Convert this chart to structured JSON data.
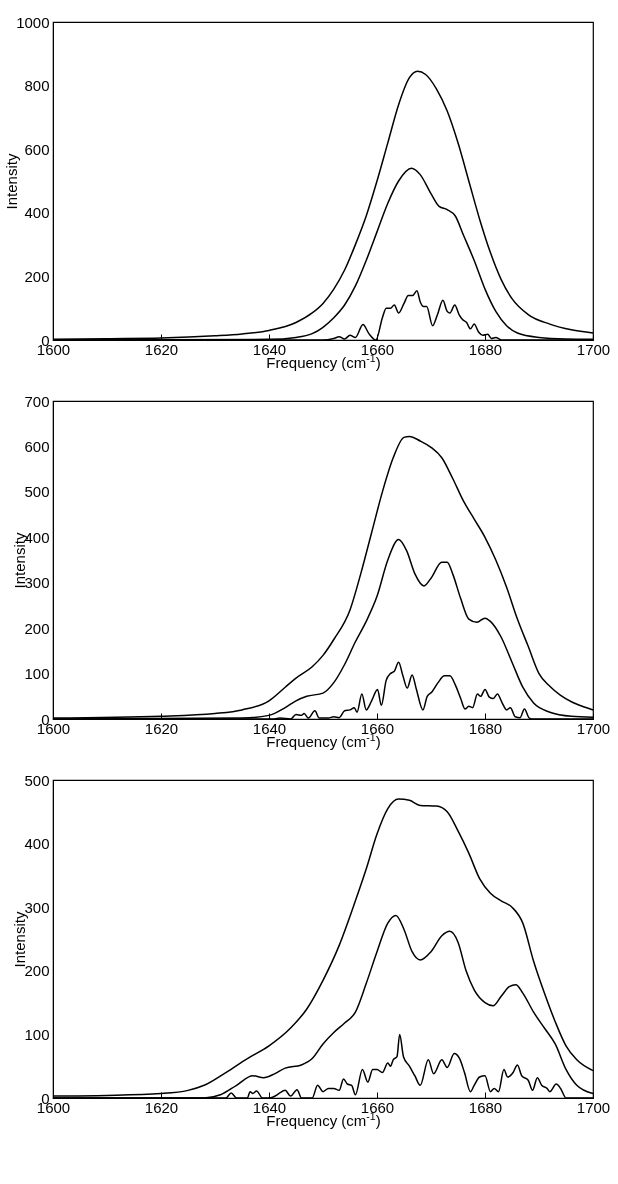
{
  "chart_data": [
    {
      "type": "line",
      "xlabel": "Frequency (cm$^{-1}$)",
      "ylabel": "Intensity",
      "xlim": [
        1600,
        1700
      ],
      "xticks": [
        1600,
        1620,
        1640,
        1660,
        1680,
        1700
      ],
      "ylim": [
        0,
        1000
      ],
      "yticks": [
        0,
        200,
        400,
        600,
        800,
        1000
      ],
      "series": [
        {
          "color": "#000000",
          "x": [
            1600,
            1610,
            1620,
            1630,
            1635,
            1640,
            1645,
            1648,
            1650,
            1652,
            1654,
            1656,
            1658,
            1660,
            1662,
            1664,
            1666,
            1667.5,
            1669,
            1671,
            1673,
            1675,
            1677,
            1679,
            1681,
            1683,
            1685,
            1688,
            1692,
            1696,
            1700
          ],
          "values": [
            2,
            4,
            6,
            13,
            19,
            30,
            55,
            85,
            115,
            160,
            220,
            300,
            390,
            500,
            620,
            740,
            825,
            845,
            835,
            790,
            720,
            620,
            500,
            380,
            275,
            190,
            130,
            80,
            50,
            32,
            22
          ]
        },
        {
          "color": "#000000",
          "x": [
            1600,
            1640,
            1645,
            1648,
            1650,
            1652,
            1654,
            1656,
            1658,
            1660,
            1662,
            1664,
            1666.4,
            1668,
            1670,
            1671.5,
            1673,
            1674.5,
            1676,
            1678,
            1680,
            1682,
            1684,
            1686,
            1690,
            1695,
            1700
          ],
          "values": [
            0,
            2,
            8,
            20,
            40,
            70,
            110,
            170,
            250,
            340,
            430,
            500,
            540,
            520,
            460,
            420,
            410,
            390,
            330,
            250,
            160,
            90,
            45,
            22,
            8,
            3,
            2
          ]
        },
        {
          "color": "#000000",
          "x": [
            1600,
            1650,
            1652,
            1653,
            1654,
            1655,
            1656,
            1657.4,
            1658.5,
            1659.8,
            1661,
            1661.7,
            1662.5,
            1663.2,
            1664,
            1665,
            1665.8,
            1666.6,
            1667.4,
            1668,
            1668.6,
            1669.2,
            1670.3,
            1671.2,
            1672.2,
            1673,
            1673.5,
            1674.4,
            1675.2,
            1675.8,
            1676.6,
            1677.3,
            1678,
            1678.8,
            1679.6,
            1680.5,
            1681.2,
            1682,
            1683,
            1700
          ],
          "values": [
            0,
            0,
            5,
            10,
            3,
            15,
            8,
            49,
            20,
            0,
            70,
            100,
            100,
            110,
            85,
            115,
            140,
            140,
            155,
            120,
            105,
            105,
            45,
            80,
            125,
            90,
            85,
            110,
            80,
            65,
            55,
            35,
            50,
            25,
            15,
            18,
            5,
            8,
            0,
            0
          ]
        }
      ]
    },
    {
      "type": "line",
      "xlabel": "Frequency (cm$^{-1}$)",
      "ylabel": "Intensity",
      "xlim": [
        1600,
        1700
      ],
      "xticks": [
        1600,
        1620,
        1640,
        1660,
        1680,
        1700
      ],
      "ylim": [
        0,
        700
      ],
      "yticks": [
        0,
        100,
        200,
        300,
        400,
        500,
        600,
        700
      ],
      "series": [
        {
          "color": "#000000",
          "x": [
            1600,
            1620,
            1630,
            1635,
            1640,
            1643,
            1645,
            1648,
            1650,
            1652,
            1655,
            1657,
            1659,
            1661,
            1663,
            1665,
            1666,
            1668,
            1670,
            1672,
            1674,
            1676,
            1678,
            1680,
            1682,
            1684,
            1686,
            1688,
            1690,
            1692,
            1694,
            1696,
            1698,
            1700
          ],
          "values": [
            2,
            6,
            12,
            20,
            40,
            70,
            90,
            115,
            140,
            175,
            240,
            320,
            410,
            500,
            575,
            620,
            622,
            612,
            598,
            575,
            530,
            480,
            440,
            400,
            350,
            290,
            220,
            160,
            100,
            72,
            52,
            38,
            28,
            20
          ]
        },
        {
          "color": "#000000",
          "x": [
            1600,
            1635,
            1640,
            1643,
            1645,
            1647,
            1650,
            1652,
            1654,
            1656,
            1658,
            1660,
            1662,
            1664,
            1665.5,
            1667,
            1668.7,
            1670,
            1672,
            1673,
            1674,
            1675.5,
            1677,
            1678.5,
            1680,
            1681,
            1683,
            1685,
            1687,
            1689,
            1692,
            1696,
            1700
          ],
          "values": [
            0,
            2,
            8,
            25,
            40,
            50,
            57,
            80,
            120,
            170,
            215,
            270,
            350,
            395,
            370,
            320,
            293,
            310,
            345,
            345,
            320,
            265,
            220,
            213,
            222,
            215,
            180,
            125,
            70,
            35,
            15,
            6,
            4
          ]
        },
        {
          "color": "#000000",
          "x": [
            1600,
            1641,
            1642,
            1644,
            1645,
            1646,
            1646.5,
            1647.3,
            1648.5,
            1649.3,
            1651,
            1652,
            1653,
            1654,
            1655,
            1655.8,
            1656.3,
            1657.2,
            1658,
            1659,
            1660.1,
            1660.8,
            1661.7,
            1662.5,
            1663.2,
            1664,
            1664.8,
            1665.6,
            1666.5,
            1667.3,
            1668.5,
            1669.3,
            1670.2,
            1671.3,
            1672.5,
            1673.5,
            1674.5,
            1675.5,
            1676.3,
            1677,
            1677.7,
            1678.6,
            1679.2,
            1680,
            1680.8,
            1681.5,
            1682.3,
            1683.2,
            1684,
            1684.7,
            1685.6,
            1686.5,
            1687.3,
            1688.2,
            1689,
            1700
          ],
          "values": [
            0,
            0,
            2,
            0,
            10,
            8,
            12,
            2,
            18,
            2,
            2,
            5,
            3,
            18,
            20,
            25,
            15,
            55,
            20,
            40,
            65,
            30,
            85,
            100,
            105,
            125,
            95,
            68,
            97,
            65,
            20,
            50,
            60,
            80,
            95,
            95,
            75,
            45,
            22,
            28,
            25,
            55,
            50,
            65,
            48,
            45,
            55,
            35,
            20,
            25,
            5,
            3,
            22,
            2,
            0,
            0
          ]
        }
      ]
    },
    {
      "type": "line",
      "xlabel": "Frequency (cm$^{-1}$)",
      "ylabel": "Intensity",
      "xlim": [
        1600,
        1700
      ],
      "xticks": [
        1600,
        1620,
        1640,
        1660,
        1680,
        1700
      ],
      "ylim": [
        0,
        500
      ],
      "yticks": [
        0,
        100,
        200,
        300,
        400,
        500
      ],
      "series": [
        {
          "color": "#000000",
          "x": [
            1600,
            1610,
            1620,
            1625,
            1628,
            1632,
            1636,
            1640,
            1644,
            1647,
            1650,
            1653,
            1656,
            1658,
            1660,
            1662,
            1664,
            1666,
            1668,
            1671,
            1673,
            1675,
            1677,
            1679,
            1681,
            1683,
            1685,
            1687,
            1689,
            1691,
            1693,
            1695,
            1697,
            1700
          ],
          "values": [
            3,
            4,
            7,
            12,
            20,
            40,
            62,
            82,
            110,
            140,
            185,
            240,
            310,
            360,
            415,
            455,
            470,
            468,
            460,
            459,
            450,
            420,
            385,
            345,
            322,
            310,
            300,
            275,
            215,
            165,
            120,
            82,
            60,
            43
          ]
        },
        {
          "color": "#000000",
          "x": [
            1600,
            1628,
            1631,
            1634,
            1637,
            1639,
            1641,
            1643,
            1646,
            1648,
            1650,
            1652,
            1654,
            1656,
            1658,
            1660,
            1662,
            1663.5,
            1665,
            1666.5,
            1668,
            1670,
            1672,
            1673.5,
            1675,
            1676.5,
            1678,
            1680,
            1681.5,
            1683,
            1684.5,
            1685.7,
            1687,
            1689,
            1691,
            1693,
            1695,
            1697,
            1700
          ],
          "values": [
            0,
            0,
            5,
            20,
            35,
            32,
            38,
            47,
            52,
            62,
            85,
            103,
            118,
            135,
            180,
            230,
            275,
            287,
            265,
            230,
            217,
            230,
            255,
            262,
            245,
            200,
            170,
            150,
            145,
            160,
            175,
            178,
            165,
            135,
            110,
            85,
            45,
            20,
            7
          ]
        },
        {
          "color": "#000000",
          "x": [
            1600,
            1632,
            1633,
            1634,
            1636,
            1636.5,
            1637,
            1637.7,
            1638.8,
            1640,
            1641.5,
            1642,
            1643,
            1644,
            1645.2,
            1646,
            1648,
            1649,
            1650,
            1651,
            1652,
            1653,
            1653.8,
            1654.5,
            1655.3,
            1656,
            1657.3,
            1658.3,
            1659.2,
            1660,
            1661,
            1662,
            1662.5,
            1663,
            1663.7,
            1664.2,
            1664.9,
            1666,
            1667,
            1668,
            1669.5,
            1670.5,
            1672,
            1673,
            1674.3,
            1675.3,
            1676.2,
            1677.3,
            1678,
            1679,
            1680,
            1681,
            1681.7,
            1682.5,
            1683.5,
            1684.2,
            1685.2,
            1686,
            1686.8,
            1688,
            1688.8,
            1689.7,
            1690.5,
            1691.5,
            1692,
            1693.2,
            1694,
            1695,
            1700
          ],
          "values": [
            0,
            0,
            8,
            0,
            0,
            10,
            7,
            11,
            0,
            0,
            5,
            8,
            12,
            3,
            13,
            0,
            0,
            20,
            10,
            15,
            15,
            12,
            30,
            22,
            20,
            5,
            45,
            25,
            45,
            45,
            40,
            55,
            50,
            60,
            65,
            100,
            65,
            50,
            35,
            20,
            60,
            38,
            60,
            48,
            70,
            62,
            40,
            10,
            20,
            33,
            35,
            10,
            15,
            10,
            45,
            33,
            40,
            52,
            35,
            28,
            12,
            32,
            20,
            15,
            10,
            22,
            15,
            0,
            0
          ]
        }
      ]
    }
  ]
}
